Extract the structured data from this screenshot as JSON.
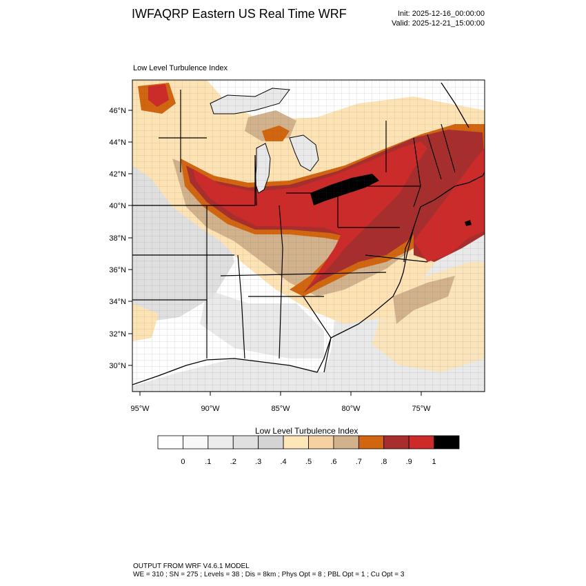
{
  "header": {
    "title": "IWFAQRP Eastern US Real Time WRF",
    "init": "Init: 2025-12-16_00:00:00",
    "valid": "Valid: 2025-12-21_15:00:00"
  },
  "map": {
    "subtitle": "Low Level Turbulence Index",
    "lat_labels": [
      "46°N",
      "44°N",
      "42°N",
      "40°N",
      "38°N",
      "36°N",
      "34°N",
      "32°N",
      "30°N"
    ],
    "lon_labels": [
      "95°W",
      "90°W",
      "85°W",
      "80°W",
      "75°W"
    ],
    "colors": {
      "ocean_light": "#e9e9e9",
      "land_grey": "#dcdcdc",
      "pale_orange": "#fde3b4",
      "tan": "#d2b28c",
      "orange": "#d2650f",
      "dark_red": "#a82e2e",
      "red": "#cd2a2a",
      "black": "#000000"
    }
  },
  "colorbar": {
    "title": "Low Level Turbulence Index",
    "colors": [
      "#ffffff",
      "#f8f8f8",
      "#ececec",
      "#e0e0e0",
      "#d4d4d4",
      "#fde6b7",
      "#f6d2a3",
      "#d2b28c",
      "#d2650f",
      "#a82e2e",
      "#cd2a2a",
      "#000000"
    ],
    "labels": [
      "0",
      ".1",
      ".2",
      ".3",
      ".4",
      ".5",
      ".6",
      ".7",
      ".8",
      ".9",
      "1"
    ]
  },
  "footer": {
    "line1": "OUTPUT FROM WRF V4.6.1 MODEL",
    "line2": "WE = 310 ; SN = 275 ; Levels = 38 ; Dis = 8km ; Phys Opt = 8 ; PBL Opt = 1 ; Cu Opt = 3"
  }
}
